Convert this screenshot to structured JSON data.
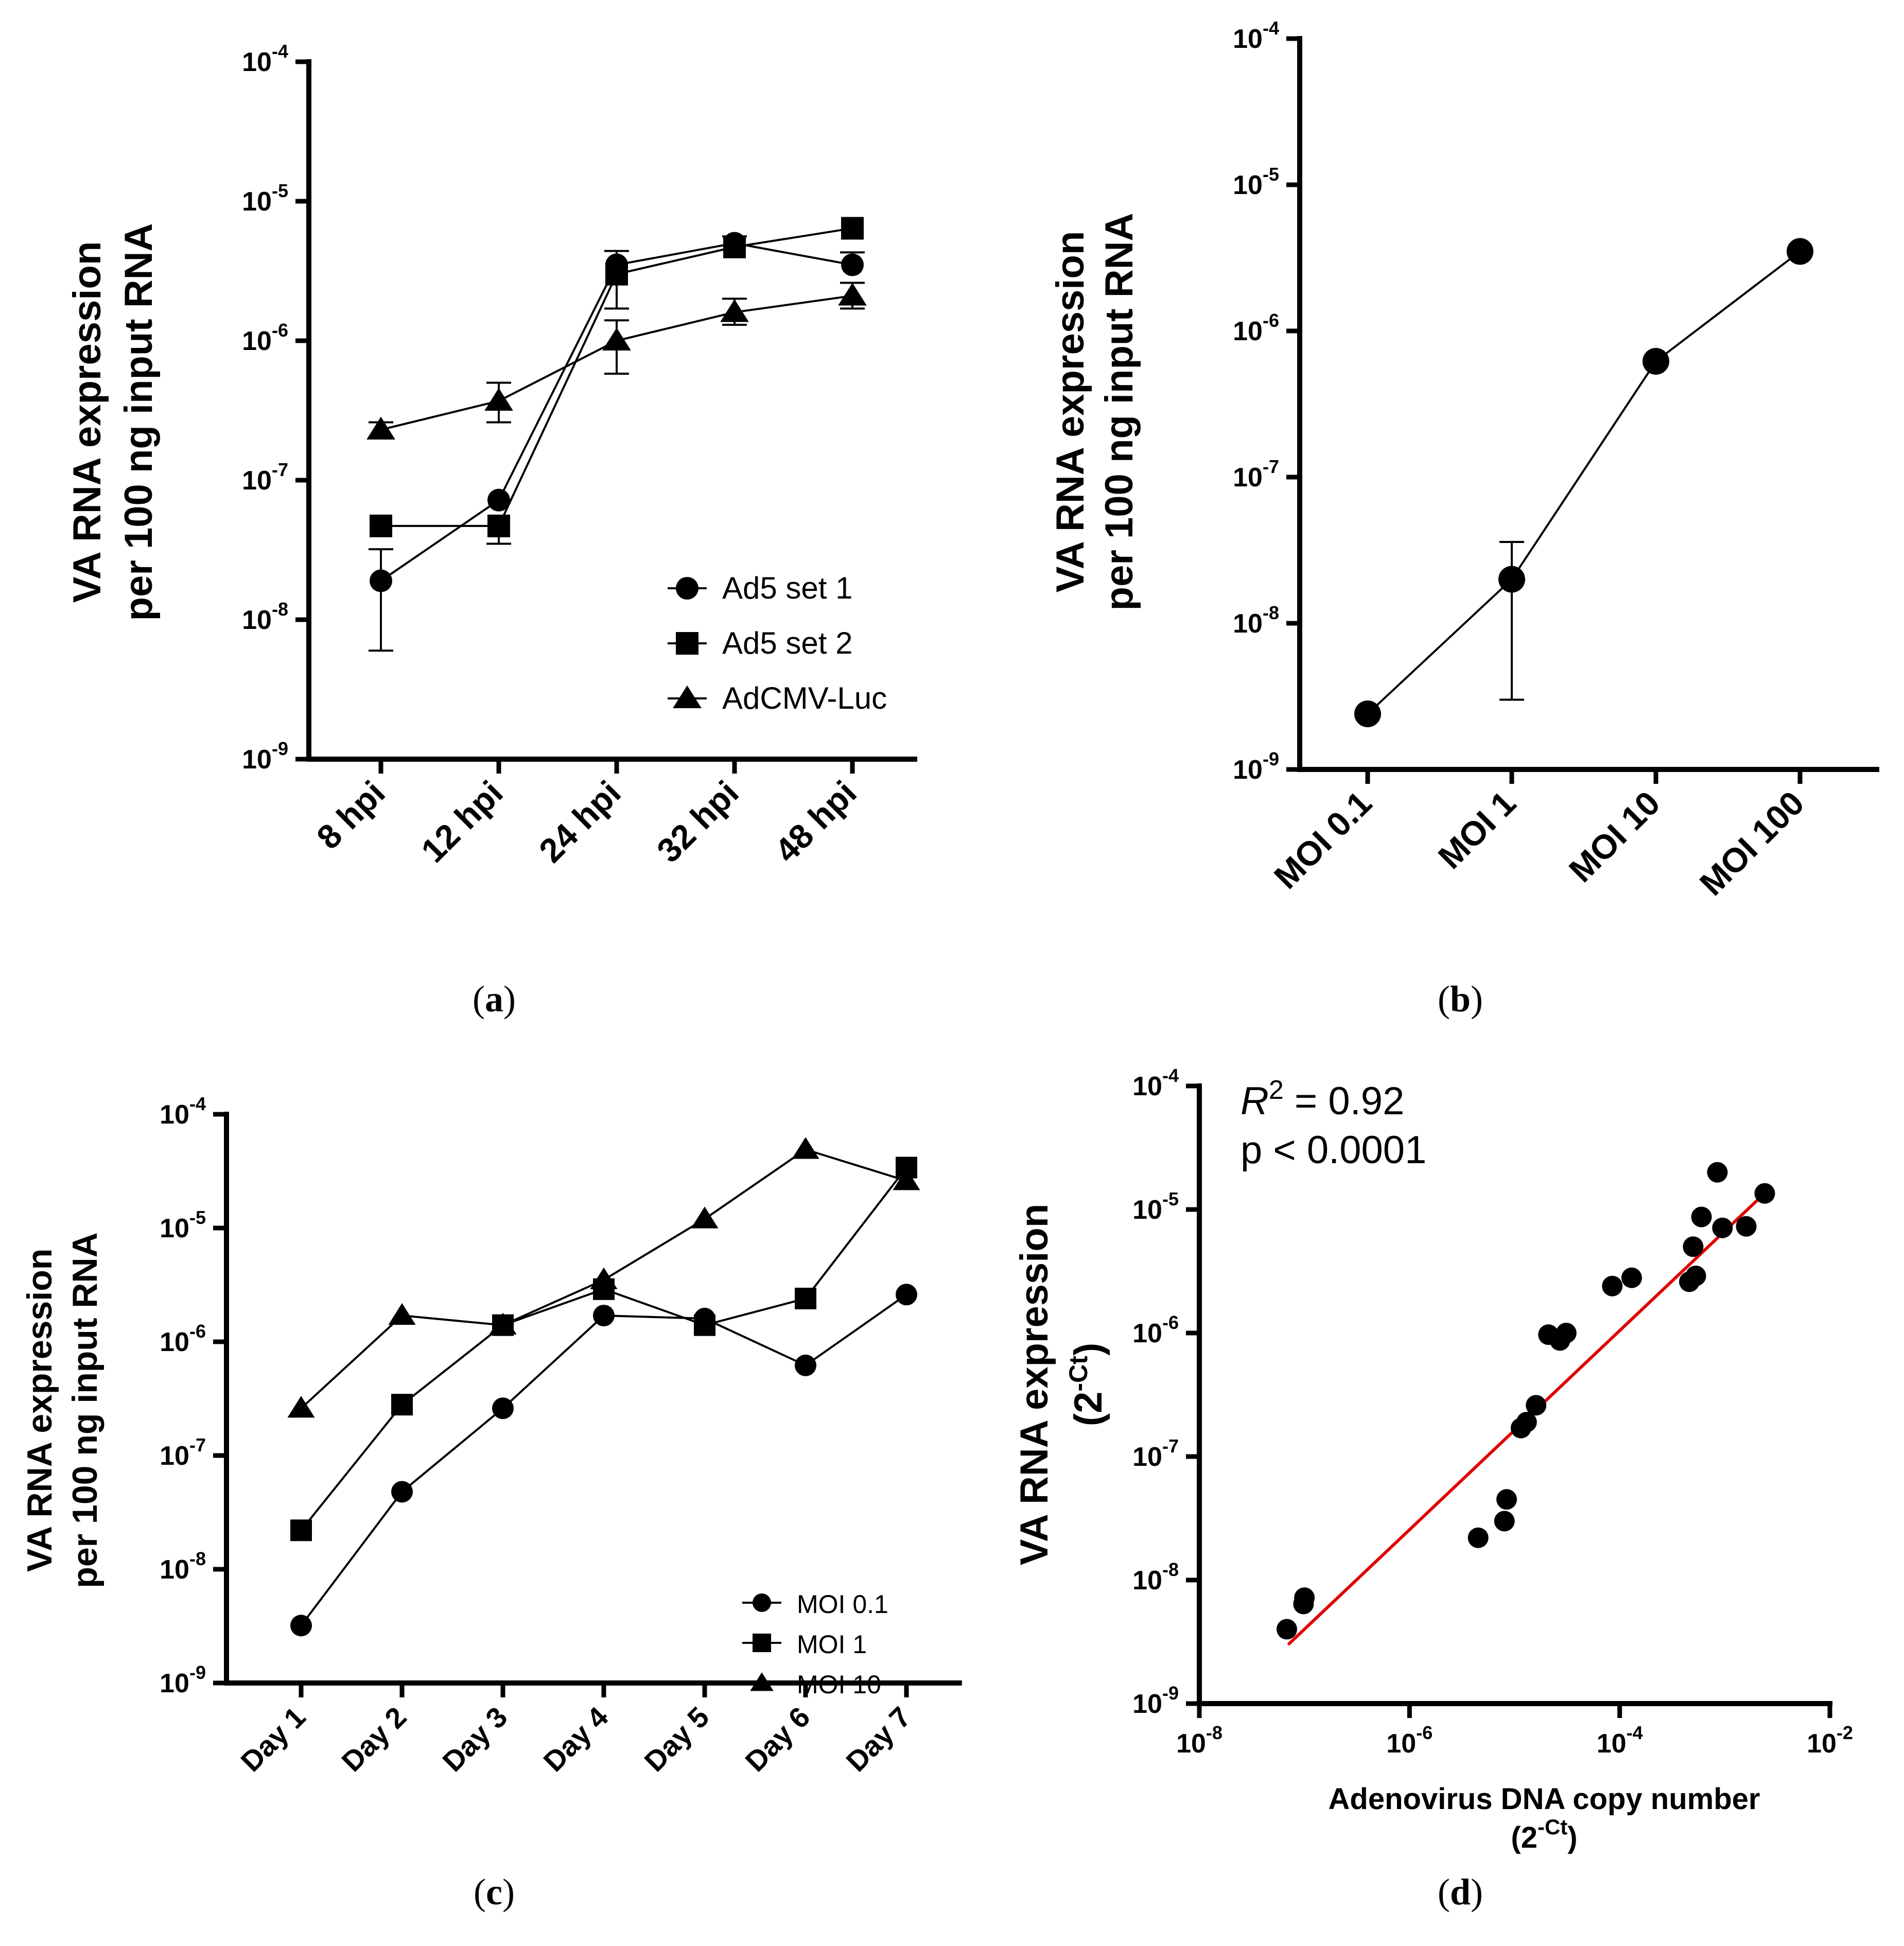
{
  "panels": {
    "a": {
      "label": "a"
    },
    "b": {
      "label": "b"
    },
    "c": {
      "label": "c"
    },
    "d": {
      "label": "d"
    }
  },
  "chart_data": [
    {
      "id": "a",
      "type": "line",
      "title": "",
      "ylabel_line1": "VA RNA expression",
      "ylabel_line2": "per 100 ng  input RNA",
      "xlabel": "",
      "yscale": "log",
      "ylim_exp": [
        -9,
        -4
      ],
      "ytick_exps": [
        -9,
        -8,
        -7,
        -6,
        -5,
        -4
      ],
      "categories": [
        "8 hpi",
        "12 hpi",
        "24 hpi",
        "32 hpi",
        "48 hpi"
      ],
      "legend_position": "bottom-right",
      "series": [
        {
          "name": "Ad5 set 1",
          "marker": "circle",
          "values": [
            1.9e-08,
            7.2e-08,
            3.5e-06,
            5e-06,
            3.5e-06
          ],
          "err_hi": [
            3.2e-08,
            null,
            4.4e-06,
            5.6e-06,
            4.3e-06
          ],
          "err_lo": [
            6e-09,
            null,
            null,
            null,
            null
          ]
        },
        {
          "name": "Ad5 set 2",
          "marker": "square",
          "values": [
            4.7e-08,
            4.7e-08,
            3e-06,
            4.7e-06,
            6.4e-06
          ],
          "err_hi": [
            null,
            null,
            null,
            null,
            null
          ],
          "err_lo": [
            null,
            3.5e-08,
            1.7e-06,
            null,
            null
          ]
        },
        {
          "name": "AdCMV-Luc",
          "marker": "triangle",
          "values": [
            2.3e-07,
            3.7e-07,
            1e-06,
            1.6e-06,
            2.1e-06
          ],
          "err_hi": [
            2.6e-07,
            5e-07,
            1.4e-06,
            2e-06,
            2.6e-06
          ],
          "err_lo": [
            2e-07,
            2.6e-07,
            5.8e-07,
            1.3e-06,
            1.7e-06
          ]
        }
      ]
    },
    {
      "id": "b",
      "type": "line",
      "title": "",
      "ylabel_line1": "VA RNA  expression",
      "ylabel_line2": "per 100 ng  input RNA",
      "xlabel": "",
      "yscale": "log",
      "ylim_exp": [
        -9,
        -4
      ],
      "ytick_exps": [
        -9,
        -8,
        -7,
        -6,
        -5,
        -4
      ],
      "categories": [
        "MOI 0.1",
        "MOI 1",
        "MOI 10",
        "MOI 100"
      ],
      "series": [
        {
          "name": "",
          "marker": "circle",
          "values": [
            2.4e-09,
            2e-08,
            6.2e-07,
            3.5e-06
          ],
          "err_hi": [
            null,
            3.6e-08,
            null,
            null
          ],
          "err_lo": [
            null,
            3e-09,
            null,
            null
          ]
        }
      ]
    },
    {
      "id": "c",
      "type": "line",
      "title": "",
      "ylabel_line1": "VA RNA expression",
      "ylabel_line2": "per 100 ng  input RNA",
      "xlabel": "",
      "yscale": "log",
      "ylim_exp": [
        -9,
        -4
      ],
      "ytick_exps": [
        -9,
        -8,
        -7,
        -6,
        -5,
        -4
      ],
      "categories": [
        "Day 1",
        "Day 2",
        "Day 3",
        "Day 4",
        "Day 5",
        "Day 6",
        "Day 7"
      ],
      "legend_position": "bottom-right",
      "series": [
        {
          "name": "MOI 0.1",
          "marker": "circle",
          "values": [
            3.2e-09,
            4.8e-08,
            2.6e-07,
            1.7e-06,
            1.6e-06,
            6.2e-07,
            2.6e-06
          ]
        },
        {
          "name": "MOI 1",
          "marker": "square",
          "values": [
            2.2e-08,
            2.8e-07,
            1.4e-06,
            2.9e-06,
            1.4e-06,
            2.4e-06,
            3.4e-05
          ]
        },
        {
          "name": "MOI 10",
          "marker": "triangle",
          "values": [
            2.6e-07,
            1.7e-06,
            1.4e-06,
            3.5e-06,
            1.2e-05,
            4.9e-05,
            2.6e-05
          ]
        }
      ]
    },
    {
      "id": "d",
      "type": "scatter",
      "title": "",
      "ylabel_line1": "VA RNA expression",
      "ylabel_line2": "(2",
      "ylabel_sup": "-Ct",
      "ylabel_line2_end": ")",
      "xlabel_line1": "Adenovirus DNA copy number",
      "xlabel_line2": "(2",
      "xlabel_sup": "-Ct",
      "xlabel_line2_end": ")",
      "xscale": "log",
      "yscale": "log",
      "xlim_exp": [
        -8,
        -2
      ],
      "xtick_exps": [
        -8,
        -6,
        -4,
        -2
      ],
      "ylim_exp": [
        -9,
        -4
      ],
      "ytick_exps": [
        -9,
        -8,
        -7,
        -6,
        -5,
        -4
      ],
      "r2_symbol": "R",
      "r2_sup": "2",
      "r2_text": " = 0.92",
      "p_text": "p  < 0.0001",
      "fit_line": {
        "x": [
          7e-08,
          0.0025
        ],
        "y": [
          3e-09,
          1.4e-05
        ],
        "color": "#e00000"
      },
      "points": [
        {
          "x": 6.8e-08,
          "y": 4e-09
        },
        {
          "x": 9.8e-08,
          "y": 6.4e-09
        },
        {
          "x": 1e-07,
          "y": 7.2e-09
        },
        {
          "x": 4.5e-06,
          "y": 2.2e-08
        },
        {
          "x": 8e-06,
          "y": 3e-08
        },
        {
          "x": 8.4e-06,
          "y": 4.5e-08
        },
        {
          "x": 1.15e-05,
          "y": 1.7e-07
        },
        {
          "x": 1.3e-05,
          "y": 1.9e-07
        },
        {
          "x": 1.6e-05,
          "y": 2.6e-07
        },
        {
          "x": 2.1e-05,
          "y": 9.7e-07
        },
        {
          "x": 2.7e-05,
          "y": 8.7e-07
        },
        {
          "x": 3.1e-05,
          "y": 1e-06
        },
        {
          "x": 8.5e-05,
          "y": 2.4e-06
        },
        {
          "x": 0.00013,
          "y": 2.8e-06
        },
        {
          "x": 0.00046,
          "y": 2.6e-06
        },
        {
          "x": 0.00053,
          "y": 2.9e-06
        },
        {
          "x": 0.0005,
          "y": 5e-06
        },
        {
          "x": 0.0006,
          "y": 8.7e-06
        },
        {
          "x": 0.00085,
          "y": 2e-05
        },
        {
          "x": 0.00095,
          "y": 7.1e-06
        },
        {
          "x": 0.0016,
          "y": 7.3e-06
        },
        {
          "x": 0.0024,
          "y": 1.35e-05
        }
      ]
    }
  ]
}
